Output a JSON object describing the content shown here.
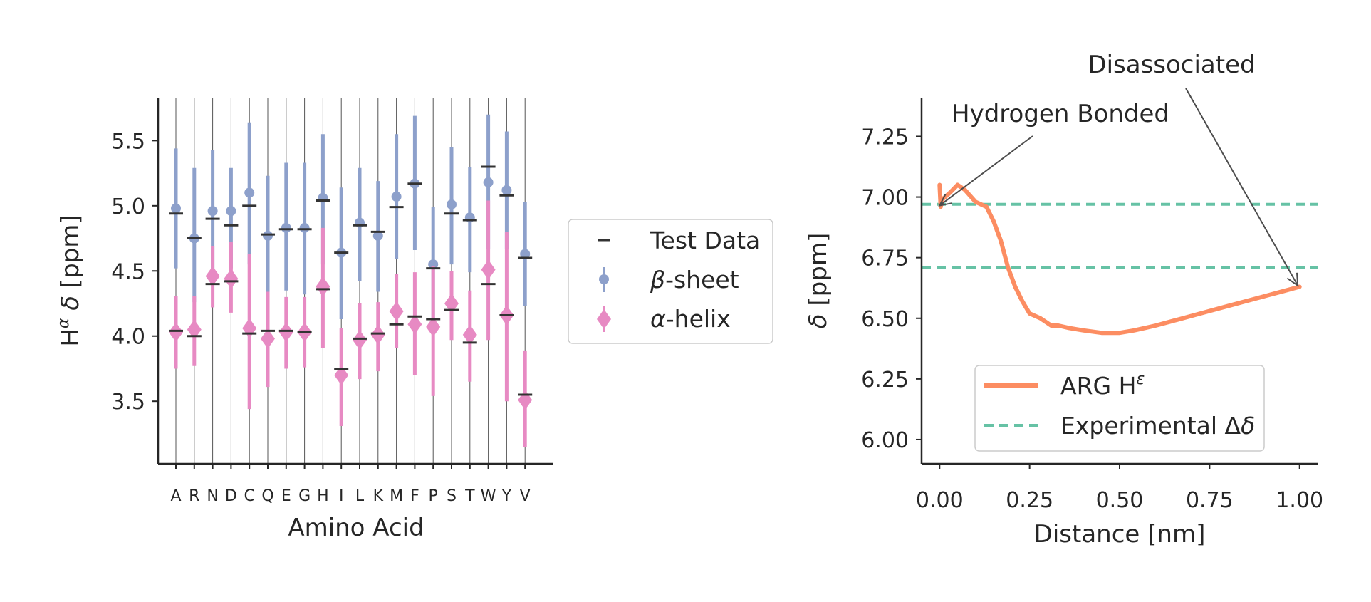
{
  "chart_data": [
    {
      "type": "scatter",
      "xlabel": "Amino Acid",
      "ylabel": "H^α δ [ppm]",
      "ylabel_parts": {
        "base": "H",
        "sup": "α",
        "greek": "δ",
        "unit": "[ppm]"
      },
      "ylim": [
        3.02,
        5.83
      ],
      "yticks": [
        "3.5",
        "4.0",
        "4.5",
        "5.0",
        "5.5"
      ],
      "ytick_values": [
        3.5,
        4.0,
        4.5,
        5.0,
        5.5
      ],
      "categories": [
        "A",
        "R",
        "N",
        "D",
        "C",
        "Q",
        "E",
        "G",
        "H",
        "I",
        "L",
        "K",
        "M",
        "F",
        "P",
        "S",
        "T",
        "W",
        "Y",
        "V"
      ],
      "legend_position": "right",
      "legend": [
        {
          "key": "test",
          "prefix": "",
          "text": "Test Data"
        },
        {
          "key": "beta",
          "prefix": "β",
          "text": "-sheet"
        },
        {
          "key": "alpha",
          "prefix": "α",
          "text": "-helix"
        }
      ],
      "colors": {
        "beta": "#8da0cb",
        "alpha": "#e78ac3",
        "test": "#333333",
        "guide": "#555555"
      },
      "series": [
        {
          "key": "beta",
          "mean": [
            4.98,
            4.75,
            4.96,
            4.96,
            5.1,
            4.77,
            4.83,
            4.83,
            5.06,
            4.64,
            4.87,
            4.77,
            5.07,
            5.17,
            4.55,
            5.01,
            4.91,
            5.18,
            5.12,
            4.63
          ],
          "lower": [
            4.52,
            4.26,
            4.5,
            4.52,
            4.55,
            4.33,
            4.35,
            4.32,
            4.55,
            4.13,
            4.42,
            4.34,
            4.59,
            4.66,
            4.13,
            4.55,
            4.49,
            4.67,
            4.67,
            4.23
          ],
          "upper": [
            5.44,
            5.29,
            5.43,
            5.29,
            5.64,
            5.23,
            5.33,
            5.33,
            5.55,
            5.14,
            5.29,
            5.19,
            5.55,
            5.69,
            4.99,
            5.45,
            5.3,
            5.7,
            5.57,
            5.03
          ]
        },
        {
          "key": "alpha",
          "mean": [
            4.03,
            4.05,
            4.46,
            4.44,
            4.06,
            3.98,
            4.03,
            4.03,
            4.38,
            3.7,
            3.97,
            4.01,
            4.19,
            4.09,
            4.07,
            4.25,
            4.01,
            4.51,
            4.16,
            3.51
          ],
          "lower": [
            3.75,
            3.77,
            4.22,
            4.18,
            3.44,
            3.61,
            3.75,
            3.76,
            3.91,
            3.31,
            3.67,
            3.73,
            3.91,
            3.7,
            3.54,
            3.97,
            3.65,
            3.97,
            3.5,
            3.15
          ],
          "upper": [
            4.31,
            4.31,
            4.69,
            4.72,
            4.63,
            4.34,
            4.3,
            4.3,
            4.83,
            4.06,
            4.25,
            4.26,
            4.48,
            4.49,
            4.54,
            4.5,
            4.35,
            5.04,
            4.8,
            3.89
          ]
        },
        {
          "key": "test",
          "values": [
            4.94,
            4.75,
            4.9,
            4.85,
            5.0,
            4.78,
            4.82,
            4.82,
            5.04,
            4.64,
            4.85,
            4.8,
            4.99,
            5.17,
            4.52,
            4.94,
            4.89,
            5.3,
            5.08,
            4.6
          ],
          "values2": [
            4.04,
            4.0,
            4.4,
            4.42,
            4.02,
            4.04,
            4.04,
            4.03,
            4.36,
            3.75,
            3.98,
            4.02,
            4.09,
            4.15,
            4.13,
            4.2,
            3.95,
            4.4,
            4.16,
            3.55
          ]
        }
      ]
    },
    {
      "type": "line",
      "xlabel": "Distance [nm]",
      "ylabel": "δ [ppm]",
      "ylabel_parts": {
        "greek": "δ",
        "unit": "[ppm]"
      },
      "xlim": [
        -0.05,
        1.05
      ],
      "ylim": [
        5.9,
        7.41
      ],
      "xticks": [
        "0.00",
        "0.25",
        "0.50",
        "0.75",
        "1.00"
      ],
      "xtick_values": [
        0,
        0.25,
        0.5,
        0.75,
        1.0
      ],
      "yticks": [
        "6.00",
        "6.25",
        "6.50",
        "6.75",
        "7.00",
        "7.25"
      ],
      "ytick_values": [
        6.0,
        6.25,
        6.5,
        6.75,
        7.0,
        7.25
      ],
      "legend_position": "lower center",
      "legend": [
        {
          "key": "arg",
          "text": "ARG H",
          "sup": "ε"
        },
        {
          "key": "exp",
          "text": "Experimental Δ",
          "italic": "δ"
        }
      ],
      "colors": {
        "arg": "#fc8d62",
        "exp": "#66c2a5",
        "arrow": "#4d4d4d"
      },
      "series": [
        {
          "key": "arg",
          "x": [
            0.0,
            0.003,
            0.007,
            0.015,
            0.03,
            0.05,
            0.07,
            0.1,
            0.13,
            0.15,
            0.17,
            0.19,
            0.21,
            0.23,
            0.25,
            0.28,
            0.31,
            0.33,
            0.36,
            0.4,
            0.45,
            0.5,
            0.54,
            0.57,
            0.6,
            0.65,
            0.7,
            0.75,
            0.8,
            0.85,
            0.9,
            0.95,
            1.0
          ],
          "y": [
            7.05,
            6.96,
            6.99,
            7.0,
            7.02,
            7.05,
            7.03,
            6.98,
            6.96,
            6.9,
            6.82,
            6.71,
            6.63,
            6.57,
            6.52,
            6.5,
            6.47,
            6.47,
            6.46,
            6.45,
            6.44,
            6.44,
            6.45,
            6.46,
            6.47,
            6.49,
            6.51,
            6.53,
            6.55,
            6.57,
            6.59,
            6.61,
            6.63
          ]
        },
        {
          "key": "exp",
          "hlines": [
            6.97,
            6.71
          ]
        }
      ],
      "annotations": [
        {
          "text": "Hydrogen Bonded",
          "x": 0.0,
          "y": 6.965
        },
        {
          "text": "Disassociated",
          "x": 0.995,
          "y": 6.635
        }
      ]
    }
  ]
}
